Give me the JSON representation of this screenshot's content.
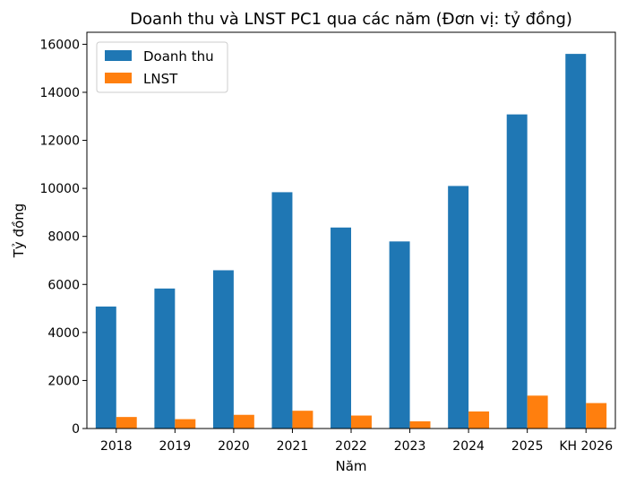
{
  "chart_data": {
    "type": "bar",
    "title": "Doanh thu và LNST PC1 qua các năm (Đơn vị: tỷ đồng)",
    "xlabel": "Năm",
    "ylabel": "Tỷ đồng",
    "categories": [
      "2018",
      "2019",
      "2020",
      "2021",
      "2022",
      "2023",
      "2024",
      "2025",
      "KH 2026"
    ],
    "series": [
      {
        "name": "Doanh thu",
        "color": "#1f77b4",
        "values": [
          5080,
          5830,
          6590,
          9840,
          8370,
          7790,
          10100,
          13080,
          15600
        ]
      },
      {
        "name": "LNST",
        "color": "#ff7f0e",
        "values": [
          480,
          390,
          570,
          740,
          540,
          300,
          710,
          1370,
          1060
        ]
      }
    ],
    "ylim": [
      0,
      16500
    ],
    "yticks": [
      0,
      2000,
      4000,
      6000,
      8000,
      10000,
      12000,
      14000,
      16000
    ],
    "grid": false,
    "legend_position": "top-left"
  }
}
